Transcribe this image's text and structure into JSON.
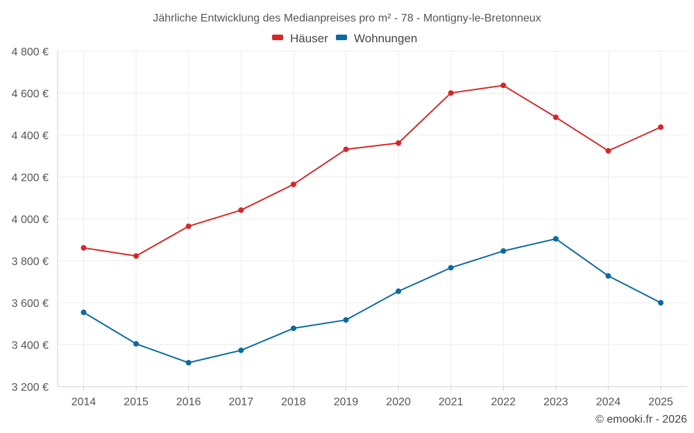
{
  "chart_data": {
    "type": "line",
    "title": "Jährliche Entwicklung des Medianpreises pro m² - 78 - Montigny-le-Bretonneux",
    "categories": [
      "2014",
      "2015",
      "2016",
      "2017",
      "2018",
      "2019",
      "2020",
      "2021",
      "2022",
      "2023",
      "2024",
      "2025"
    ],
    "series": [
      {
        "name": "Häuser",
        "color": "#d62728",
        "values": [
          3862,
          3823,
          3965,
          4042,
          4165,
          4332,
          4362,
          4601,
          4637,
          4485,
          4325,
          4438
        ]
      },
      {
        "name": "Wohnungen",
        "color": "#0a6aa1",
        "values": [
          3554,
          3404,
          3314,
          3373,
          3478,
          3518,
          3655,
          3767,
          3847,
          3905,
          3728,
          3600
        ]
      }
    ],
    "ylim": [
      3200,
      4800
    ],
    "yticks": [
      3200,
      3400,
      3600,
      3800,
      4000,
      4200,
      4400,
      4600,
      4800
    ],
    "ytick_labels": [
      "3 200 €",
      "3 400 €",
      "3 600 €",
      "3 800 €",
      "4 000 €",
      "4 200 €",
      "4 400 €",
      "4 600 €",
      "4 800 €"
    ],
    "xlabel": "",
    "ylabel": "",
    "grid": true,
    "legend": "top-center"
  },
  "credit": "© emooki.fr - 2026"
}
